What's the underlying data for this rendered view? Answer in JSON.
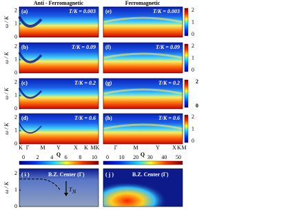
{
  "headers": [
    "Anti - Ferromagnetic",
    "Ferromagnetic"
  ],
  "y_axis_label": "ω / K",
  "x_axis_label": "Q",
  "panels": [
    {
      "label": "(a)",
      "temperature": "T/K = 0.003"
    },
    {
      "label": "(b)",
      "temperature": "T/K = 0.09"
    },
    {
      "label": "(c)",
      "temperature": "T/K = 0.2"
    },
    {
      "label": "(d)",
      "temperature": "T/K = 0.6"
    },
    {
      "label": "(e)",
      "temperature": "T/K = 0.003"
    },
    {
      "label": "(f)",
      "temperature": "T/K = 0.09"
    },
    {
      "label": "(g)",
      "temperature": "T/K = 0.2"
    },
    {
      "label": "(h)",
      "temperature": "T/K = 0.6"
    }
  ],
  "y_ticks": [
    0,
    1,
    2
  ],
  "x_ticks_left": [
    "K",
    "Γ",
    "M",
    "Y",
    "X",
    "K",
    "MK"
  ],
  "x_ticks_right": [
    "Γ",
    "M",
    "Y",
    "X",
    "K",
    "M"
  ],
  "side_colorbar_ticks": [
    [
      2,
      1,
      0
    ],
    [
      2,
      1,
      0
    ],
    [
      2,
      0
    ],
    [
      2,
      1,
      0
    ]
  ],
  "colorbar_ticks_left": [
    0,
    2,
    4,
    6,
    8,
    10
  ],
  "colorbar_ticks_right": [
    0,
    10,
    20,
    30,
    40,
    50
  ],
  "bottom_panels": [
    {
      "label": "( i )",
      "title": "B.Z. Center (Γ)"
    },
    {
      "label": "( j )",
      "title": "B.Z. Center (Γ)"
    }
  ],
  "annotation": {
    "main": "T",
    "sub": "N"
  }
}
